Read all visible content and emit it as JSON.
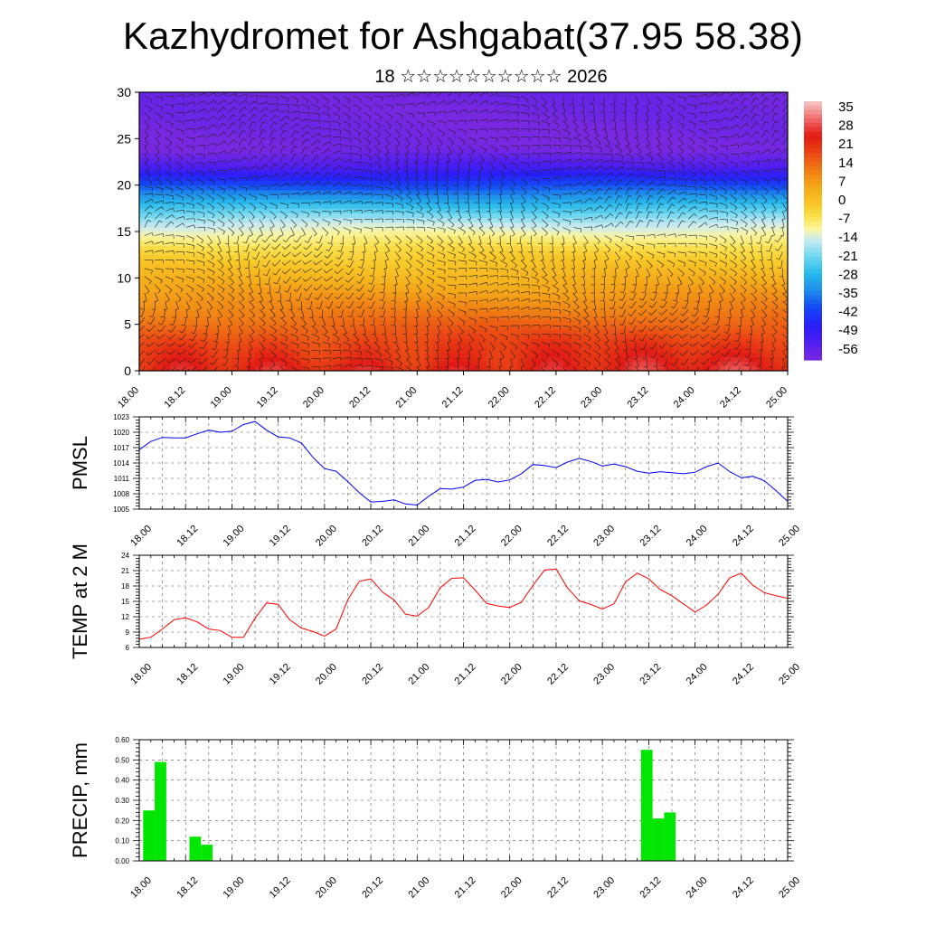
{
  "title": "Kazhydromet for Ashgabat(37.95 58.38)",
  "subtitle": "18 ☆☆☆☆☆☆☆☆☆☆ 2026",
  "x_tick_labels": [
    "18.00",
    "18.12",
    "19.00",
    "19.12",
    "20.00",
    "20.12",
    "21.00",
    "21.12",
    "22.00",
    "22.12",
    "23.00",
    "23.12",
    "24.00",
    "24.12",
    "25.00"
  ],
  "colors": {
    "pmsl_line": "#0000ff",
    "temp_line": "#ff0000",
    "precip_bar": "#00e600",
    "grid": "#555555"
  },
  "chart_data": [
    {
      "type": "heatmap",
      "name": "cross-section",
      "title": "",
      "x_range_hours": [
        0,
        168
      ],
      "ylim": [
        0,
        30
      ],
      "y_ticks": [
        0,
        5,
        10,
        15,
        20,
        25,
        30
      ],
      "colorbar_labels": [
        "35",
        "28",
        "21",
        "14",
        "7",
        "0",
        "-7",
        "-14",
        "-21",
        "-28",
        "-35",
        "-42",
        "-49",
        "-56"
      ],
      "colorbar_range": [
        -63,
        42
      ],
      "temperature_profile_by_level": [
        [
          0,
          26
        ],
        [
          3,
          21
        ],
        [
          6,
          14
        ],
        [
          9,
          7
        ],
        [
          11,
          2
        ],
        [
          13,
          -3
        ],
        [
          15,
          -11
        ],
        [
          16,
          -15
        ],
        [
          18,
          -28
        ],
        [
          20,
          -42
        ],
        [
          22,
          -55
        ],
        [
          24,
          -63
        ],
        [
          27,
          -62
        ],
        [
          30,
          -61
        ]
      ]
    },
    {
      "type": "line",
      "name": "pmsl",
      "ylabel": "PMSL",
      "ylim": [
        1005,
        1023
      ],
      "y_ticks": [
        1005,
        1008,
        1011,
        1014,
        1017,
        1020,
        1023
      ],
      "x_step_hours": 3,
      "values": [
        1016.6,
        1018.2,
        1019.0,
        1018.9,
        1018.9,
        1019.7,
        1020.4,
        1020.0,
        1020.2,
        1021.5,
        1022.1,
        1020.4,
        1019.1,
        1018.9,
        1017.9,
        1015.1,
        1012.9,
        1012.4,
        1010.4,
        1008.2,
        1006.4,
        1006.5,
        1006.8,
        1006.0,
        1005.8,
        1007.5,
        1009.0,
        1008.9,
        1009.3,
        1010.6,
        1010.8,
        1010.3,
        1010.7,
        1011.9,
        1013.7,
        1013.5,
        1013.1,
        1014.2,
        1014.9,
        1014.3,
        1013.4,
        1013.8,
        1013.3,
        1012.4,
        1012.0,
        1012.3,
        1012.1,
        1011.9,
        1012.2,
        1013.3,
        1014.0,
        1012.3,
        1011.1,
        1011.4,
        1010.5,
        1008.6,
        1006.5
      ]
    },
    {
      "type": "line",
      "name": "temp",
      "ylabel": "TEMP at 2 M",
      "ylim": [
        6,
        24
      ],
      "y_ticks": [
        6,
        9,
        12,
        15,
        18,
        21,
        24
      ],
      "x_step_hours": 3,
      "values": [
        7.6,
        8.0,
        9.6,
        11.4,
        11.8,
        11.0,
        9.6,
        9.3,
        8.0,
        8.0,
        11.7,
        14.7,
        14.4,
        11.4,
        9.8,
        9.1,
        8.2,
        9.6,
        15.3,
        18.9,
        19.4,
        16.8,
        15.3,
        12.5,
        12.1,
        13.8,
        17.7,
        19.5,
        19.6,
        17.2,
        14.6,
        14.1,
        13.8,
        14.8,
        18.1,
        21.1,
        21.3,
        17.6,
        15.1,
        14.4,
        13.5,
        14.5,
        18.8,
        20.5,
        19.4,
        17.3,
        16.1,
        14.5,
        12.9,
        14.3,
        16.4,
        19.6,
        20.5,
        18.1,
        16.7,
        16.1,
        15.6
      ]
    },
    {
      "type": "bar",
      "name": "precip",
      "ylabel": "PRECIP, mm",
      "ylim": [
        0,
        0.6
      ],
      "y_tick_labels": [
        "0.00",
        "0.10",
        "0.20",
        "0.30",
        "0.40",
        "0.50",
        "0.60"
      ],
      "bar_width_hours": 3,
      "bars": [
        {
          "start_hour": 1,
          "value": 0.25
        },
        {
          "start_hour": 4,
          "value": 0.49
        },
        {
          "start_hour": 13,
          "value": 0.12
        },
        {
          "start_hour": 16,
          "value": 0.08
        },
        {
          "start_hour": 130,
          "value": 0.55
        },
        {
          "start_hour": 133,
          "value": 0.21
        },
        {
          "start_hour": 136,
          "value": 0.24
        }
      ]
    }
  ]
}
